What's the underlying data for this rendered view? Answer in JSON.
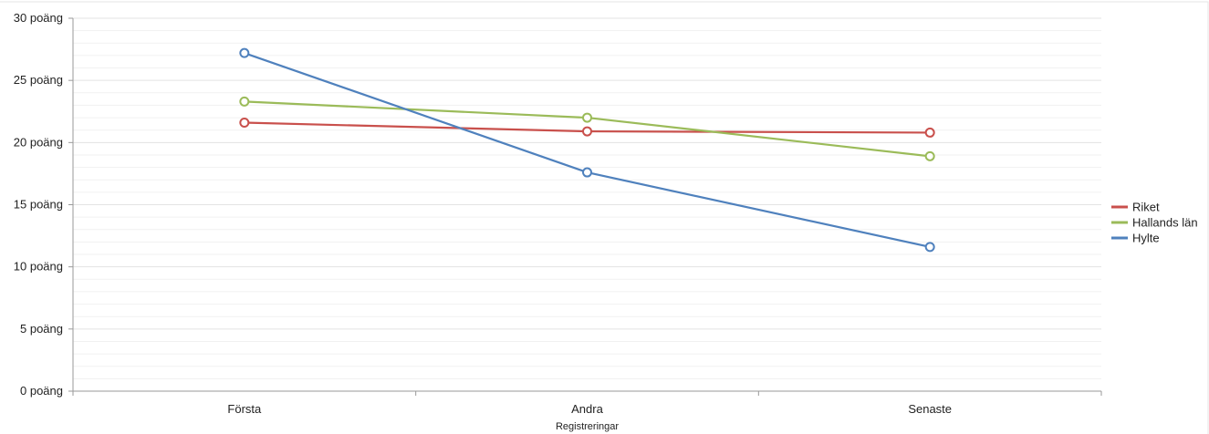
{
  "chart_data": {
    "type": "line",
    "categories": [
      "Första",
      "Andra",
      "Senaste"
    ],
    "y_unit_suffix": " poäng",
    "ylim": [
      0,
      30
    ],
    "y_ticks": [
      0,
      5,
      10,
      15,
      20,
      25,
      30
    ],
    "y_tick_labels": [
      "0 poäng",
      "5 poäng",
      "10 poäng",
      "15 poäng",
      "20 poäng",
      "25 poäng",
      "30 poäng"
    ],
    "xlabel": "Registreringar",
    "ylabel": "",
    "title": "",
    "grid": true,
    "legend_position": "right",
    "series": [
      {
        "name": "Riket",
        "color": "#c9504c",
        "values": [
          21.6,
          20.9,
          20.8
        ]
      },
      {
        "name": "Hallands län",
        "color": "#9bbb59",
        "values": [
          23.3,
          22.0,
          18.9
        ]
      },
      {
        "name": "Hylte",
        "color": "#4f81bd",
        "values": [
          27.2,
          17.6,
          11.6
        ]
      }
    ]
  }
}
